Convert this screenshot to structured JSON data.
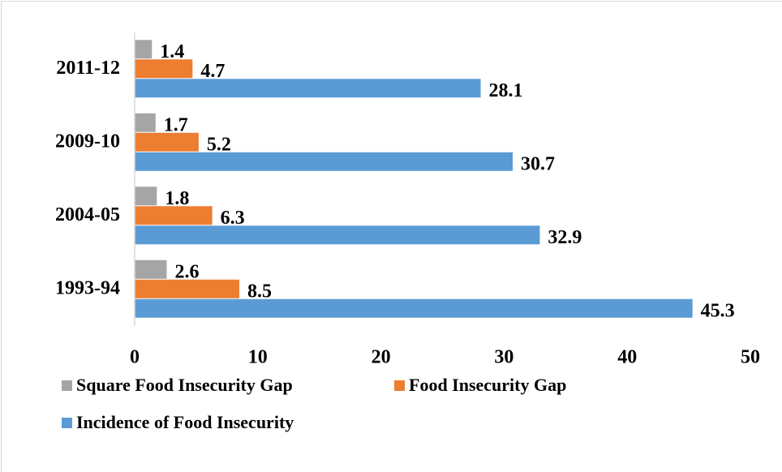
{
  "chart_data": {
    "type": "bar",
    "orientation": "horizontal",
    "categories": [
      "1993-94",
      "2004-05",
      "2009-10",
      "2011-12"
    ],
    "series": [
      {
        "name": "Square Food Insecurity Gap",
        "color": "#a5a5a5",
        "values": [
          2.6,
          1.8,
          1.7,
          1.4
        ]
      },
      {
        "name": "Food Insecurity Gap",
        "color": "#ed7d31",
        "values": [
          8.5,
          6.3,
          5.2,
          4.7
        ]
      },
      {
        "name": "Incidence of Food Insecurity",
        "color": "#5b9bd5",
        "values": [
          45.3,
          32.9,
          30.7,
          28.1
        ]
      }
    ],
    "xlim": [
      0,
      50
    ],
    "xticks": [
      0,
      10,
      20,
      30,
      40,
      50
    ],
    "grid": false,
    "legend": "bottom"
  }
}
